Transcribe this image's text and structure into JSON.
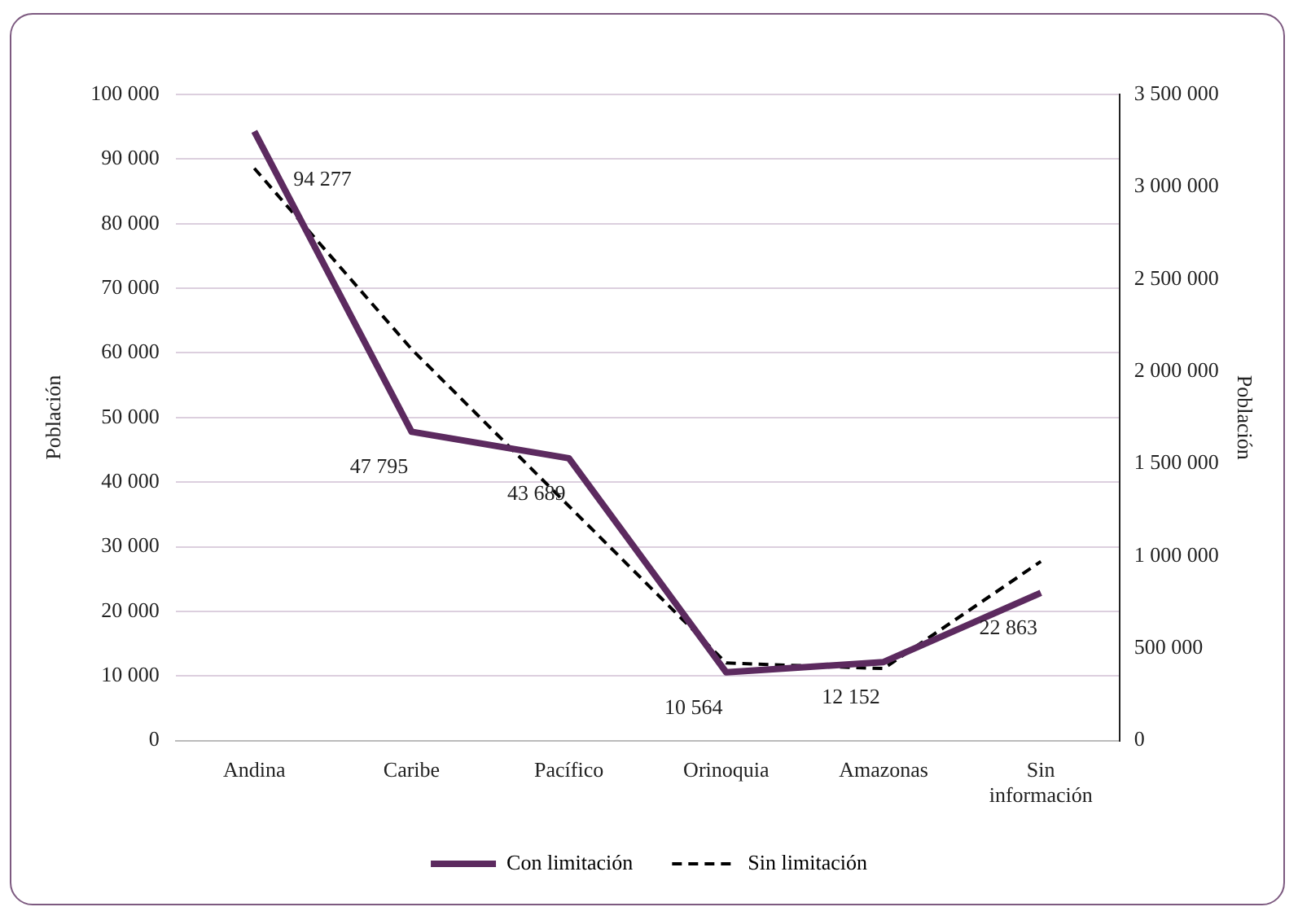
{
  "chart_data": {
    "type": "line",
    "categories": [
      "Andina",
      "Caribe",
      "Pacífico",
      "Orinoquia",
      "Amazonas",
      "Sin información"
    ],
    "series": [
      {
        "name": "Con limitación",
        "color": "#5c2a5f",
        "values": [
          94277,
          47795,
          43689,
          10564,
          12152,
          22863
        ],
        "value_labels": [
          "94 277",
          "47 795",
          "43 689",
          "10 564",
          "12 152",
          "22 863"
        ],
        "line_style": "solid"
      },
      {
        "name": "Sin limitación",
        "color": "#000000",
        "axis": "y2",
        "values": [
          3100000,
          2120000,
          1270000,
          420000,
          390000,
          970000
        ],
        "line_style": "dashed"
      }
    ],
    "ylabel": "Población",
    "y2label": "Población",
    "ylim": [
      0,
      100000
    ],
    "yticks": [
      0,
      10000,
      20000,
      30000,
      40000,
      50000,
      60000,
      70000,
      80000,
      90000,
      100000
    ],
    "y2lim": [
      0,
      3500000
    ],
    "y2ticks": [
      0,
      500000,
      1000000,
      1500000,
      2000000,
      2500000,
      3000000,
      3500000
    ],
    "grid": "y",
    "legend": "bottom",
    "marker": "none"
  }
}
